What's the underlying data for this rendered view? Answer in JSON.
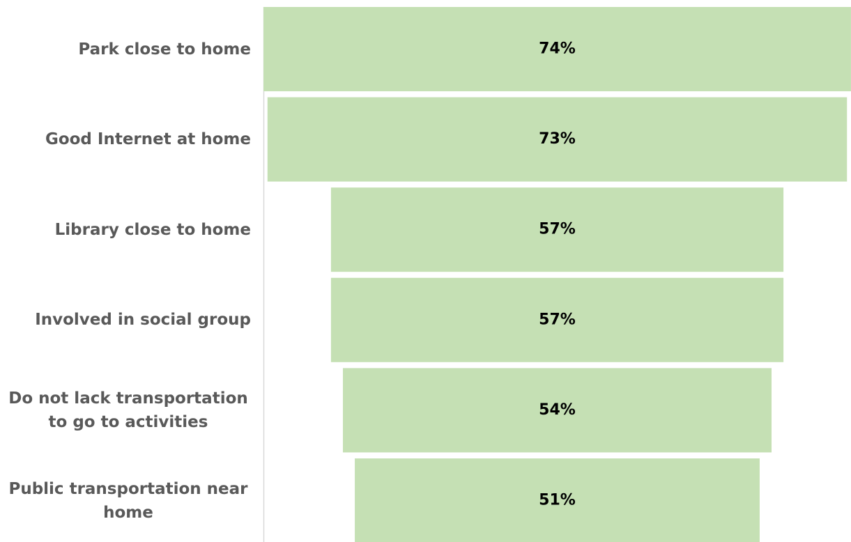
{
  "chart_data": {
    "type": "funnel",
    "categories": [
      "Park close to home",
      "Good Internet at home",
      "Library close to home",
      "Involved in social group",
      "Do not lack transportation to go to activities",
      "Public transportation near home"
    ],
    "values": [
      74,
      73,
      57,
      57,
      54,
      51
    ],
    "value_labels": [
      "74%",
      "73%",
      "57%",
      "57%",
      "54%",
      "51%"
    ],
    "color": "#c5e0b4"
  }
}
